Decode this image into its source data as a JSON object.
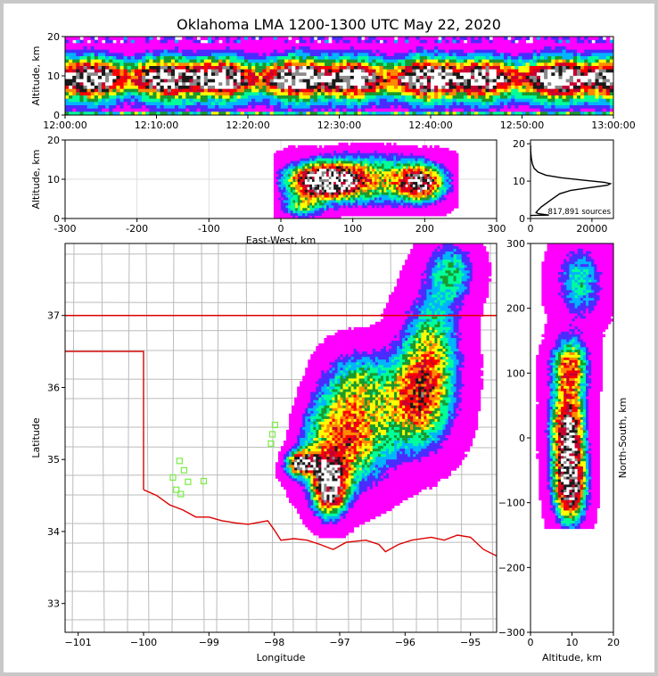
{
  "title": "Oklahoma LMA 1200-1300 UTC May 22, 2020",
  "colors": {
    "ramp": [
      "#ffffff",
      "#ff00ff",
      "#4a2cff",
      "#00b4ff",
      "#00ff9a",
      "#1a9a2e",
      "#ffff00",
      "#ff8a00",
      "#ff0000",
      "#c80030",
      "#1a1a1a",
      "#8a8a8a",
      "#ffffff"
    ],
    "state_border": "#dd0000",
    "county_lines": "#bbbbbb",
    "stations": "#77ee44"
  },
  "stations_label": "LMA sensor stations",
  "chart_data": [
    {
      "id": "time-height",
      "type": "heatmap",
      "title": "",
      "xlabel": "",
      "ylabel": "Altitude, km",
      "xlim": [
        "12:00:00",
        "13:00:00"
      ],
      "ylim": [
        0,
        20
      ],
      "xticks": [
        "12:00:00",
        "12:10:00",
        "12:20:00",
        "12:30:00",
        "12:40:00",
        "12:50:00",
        "13:00:00"
      ],
      "yticks": [
        "0",
        "10",
        "20"
      ]
    },
    {
      "id": "ew-height",
      "type": "heatmap",
      "xlabel": "East-West, km",
      "ylabel": "Altitude, km",
      "xlim": [
        -300,
        300
      ],
      "ylim": [
        0,
        20
      ],
      "xticks": [
        "-300",
        "-200",
        "-100",
        "0",
        "100",
        "200",
        "300"
      ],
      "yticks": [
        "0",
        "10",
        "20"
      ],
      "grid": true
    },
    {
      "id": "alt-histogram",
      "type": "line",
      "xlabel": "",
      "ylabel": "",
      "xlim": [
        0,
        27000
      ],
      "ylim": [
        0,
        21
      ],
      "xticks": [
        "0",
        "20000"
      ],
      "yticks": [
        "0",
        "10",
        "20"
      ],
      "annotation": "817,891 sources",
      "points": [
        [
          25,
          0.6
        ],
        [
          25,
          0.8
        ],
        [
          6000,
          0.9
        ],
        [
          2500,
          1.3
        ],
        [
          1800,
          1.6
        ],
        [
          2400,
          2.2
        ],
        [
          3500,
          3.1
        ],
        [
          5200,
          4.1
        ],
        [
          7200,
          5.3
        ],
        [
          9500,
          6.6
        ],
        [
          13000,
          7.5
        ],
        [
          19000,
          8.2
        ],
        [
          25000,
          8.9
        ],
        [
          26000,
          9.3
        ],
        [
          24000,
          9.7
        ],
        [
          18000,
          10.2
        ],
        [
          10000,
          10.9
        ],
        [
          5000,
          11.6
        ],
        [
          2500,
          12.4
        ],
        [
          1200,
          13.4
        ],
        [
          600,
          14.6
        ],
        [
          250,
          16.2
        ],
        [
          80,
          17.8
        ],
        [
          20,
          19.6
        ]
      ]
    },
    {
      "id": "plan-view",
      "type": "heatmap",
      "xlabel": "Longitude",
      "ylabel": "Latitude",
      "xlim": [
        -101.2,
        -94.6
      ],
      "ylim": [
        32.6,
        38.0
      ],
      "xticks": [
        "−101",
        "−100",
        "−99",
        "−98",
        "−97",
        "−96",
        "−95"
      ],
      "yticks": [
        "33",
        "34",
        "35",
        "36",
        "37"
      ],
      "stations": [
        [
          -99.55,
          34.75
        ],
        [
          -99.45,
          34.98
        ],
        [
          -99.38,
          34.85
        ],
        [
          -99.32,
          34.69
        ],
        [
          -99.5,
          34.58
        ],
        [
          -99.43,
          34.52
        ],
        [
          -99.08,
          34.7
        ],
        [
          -98.05,
          35.22
        ],
        [
          -98.03,
          35.35
        ],
        [
          -97.99,
          35.48
        ]
      ]
    },
    {
      "id": "ns-height",
      "type": "heatmap",
      "xlabel": "Altitude, km",
      "ylabel": "North-South, km",
      "xlim": [
        0,
        20
      ],
      "ylim": [
        -300,
        300
      ],
      "xticks": [
        "0",
        "10",
        "20"
      ],
      "yticks": [
        "−300",
        "−200",
        "−100",
        "0",
        "100",
        "200",
        "300"
      ]
    }
  ]
}
